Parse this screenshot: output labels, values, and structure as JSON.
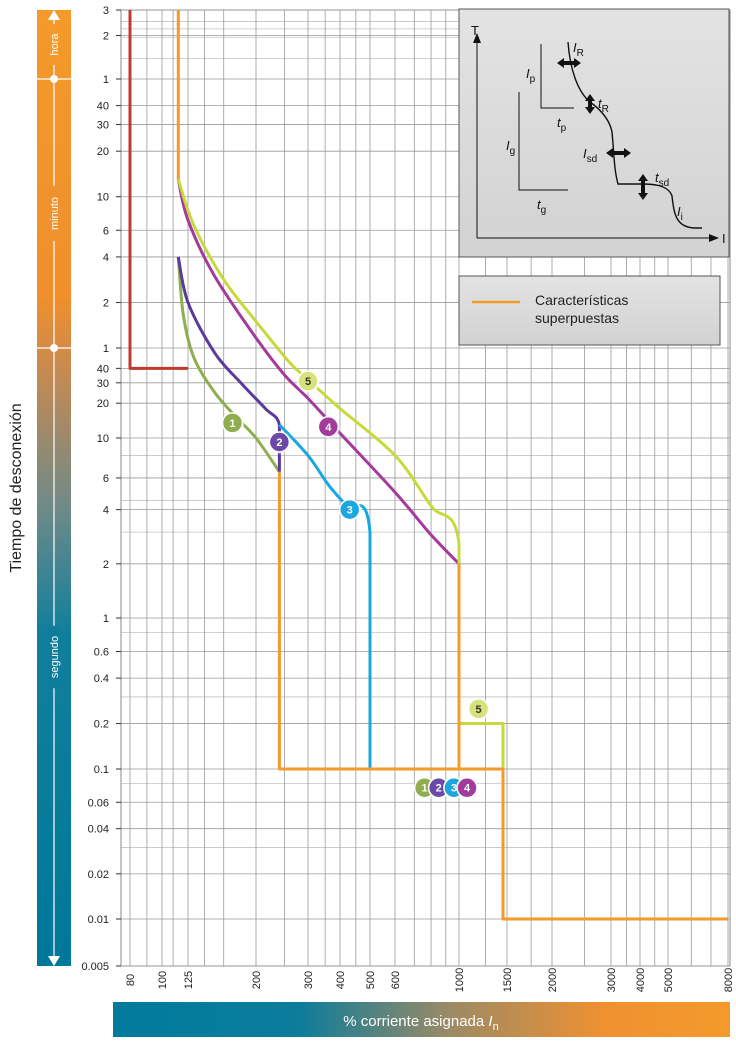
{
  "chart_data": {
    "type": "line",
    "title": "",
    "ylabel": "Tiempo de desconexión",
    "xlabel_prefix": "% corriente asignada ",
    "xlabel_symbol": "I",
    "xlabel_sub": "n",
    "x_scale": "log",
    "y_scale": "log",
    "x_ticks": [
      80,
      100,
      125,
      200,
      300,
      400,
      500,
      600,
      1000,
      1500,
      2000,
      3000,
      4000,
      5000,
      8000
    ],
    "y_ticks": [
      {
        "label": "3",
        "seconds": 10800
      },
      {
        "label": "2",
        "seconds": 7200
      },
      {
        "label": "1",
        "seconds": 3600
      },
      {
        "label": "40",
        "seconds": 2400
      },
      {
        "label": "30",
        "seconds": 1800
      },
      {
        "label": "20",
        "seconds": 1200
      },
      {
        "label": "10",
        "seconds": 600
      },
      {
        "label": "6",
        "seconds": 360
      },
      {
        "label": "4",
        "seconds": 240
      },
      {
        "label": "2",
        "seconds": 120
      },
      {
        "label": "1",
        "seconds": 60
      },
      {
        "label": "40",
        "seconds": 40
      },
      {
        "label": "30",
        "seconds": 30
      },
      {
        "label": "20",
        "seconds": 20
      },
      {
        "label": "10",
        "seconds": 10
      },
      {
        "label": "6",
        "seconds": 6
      },
      {
        "label": "4",
        "seconds": 4
      },
      {
        "label": "2",
        "seconds": 2
      },
      {
        "label": "1",
        "seconds": 1
      },
      {
        "label": "0.6",
        "seconds": 0.6
      },
      {
        "label": "0.4",
        "seconds": 0.4
      },
      {
        "label": "0.2",
        "seconds": 0.2
      },
      {
        "label": "0.1",
        "seconds": 0.1
      },
      {
        "label": "0.06",
        "seconds": 0.06
      },
      {
        "label": "0.04",
        "seconds": 0.04
      },
      {
        "label": "0.02",
        "seconds": 0.02
      },
      {
        "label": "0.01",
        "seconds": 0.01
      },
      {
        "label": "0.005",
        "seconds": 0.005
      }
    ],
    "time_bands": [
      {
        "label": "hora",
        "from_seconds": 3600,
        "to_seconds": 10800
      },
      {
        "label": "minuto",
        "from_seconds": 60,
        "to_seconds": 3600
      },
      {
        "label": "segundo",
        "from_seconds": 0.005,
        "to_seconds": 60
      }
    ],
    "series": [
      {
        "name": "",
        "color": "#c0392b",
        "points": [
          [
            80,
            10800
          ],
          [
            80,
            40
          ],
          [
            125,
            40
          ]
        ]
      },
      {
        "name": "1",
        "color": "#8fae4e",
        "points": [
          [
            115,
            240
          ],
          [
            120,
            100
          ],
          [
            130,
            50
          ],
          [
            150,
            25
          ],
          [
            175,
            15
          ],
          [
            200,
            10
          ],
          [
            240,
            6.5
          ]
        ]
      },
      {
        "name": "2",
        "color": "#5b3a9a",
        "points": [
          [
            115,
            240
          ],
          [
            125,
            120
          ],
          [
            150,
            55
          ],
          [
            180,
            30
          ],
          [
            215,
            18
          ],
          [
            240,
            13
          ],
          [
            240,
            6.5
          ]
        ]
      },
      {
        "name": "3",
        "color": "#1aa7e0",
        "points": [
          [
            240,
            13
          ],
          [
            300,
            8
          ],
          [
            360,
            5.5
          ],
          [
            420,
            4.2
          ],
          [
            500,
            3
          ],
          [
            500,
            0.1
          ]
        ]
      },
      {
        "name": "4",
        "color": "#a33a9c",
        "points": [
          [
            115,
            780
          ],
          [
            125,
            420
          ],
          [
            150,
            180
          ],
          [
            200,
            70
          ],
          [
            250,
            35
          ],
          [
            300,
            22
          ],
          [
            400,
            11
          ],
          [
            600,
            5
          ],
          [
            800,
            2.9
          ],
          [
            1000,
            2
          ]
        ]
      },
      {
        "name": "5",
        "color": "#c8d93c",
        "points": [
          [
            115,
            780
          ],
          [
            130,
            390
          ],
          [
            160,
            170
          ],
          [
            200,
            90
          ],
          [
            260,
            45
          ],
          [
            300,
            32
          ],
          [
            400,
            18
          ],
          [
            600,
            8
          ],
          [
            800,
            4.2
          ],
          [
            1000,
            2.6
          ],
          [
            1000,
            0.2
          ],
          [
            1450,
            0.2
          ],
          [
            1450,
            0.1
          ]
        ]
      },
      {
        "name": "Características superpuestas",
        "color": "#f39a2b",
        "points": [
          [
            115,
            10800
          ],
          [
            115,
            780
          ],
          [
            115,
            780
          ]
        ],
        "extra_paths": [
          [
            [
              240,
              6.5
            ],
            [
              240,
              0.1
            ],
            [
              1000,
              0.1
            ],
            [
              1000,
              2
            ]
          ],
          [
            [
              1000,
              0.1
            ],
            [
              1450,
              0.1
            ],
            [
              1450,
              0.01
            ],
            [
              8000,
              0.01
            ]
          ]
        ]
      }
    ],
    "markers": [
      {
        "label": "1",
        "x": 170,
        "y": 13.5,
        "color": "#8fae4e"
      },
      {
        "label": "2",
        "x": 240,
        "y": 9.5,
        "color": "#6a4aa8"
      },
      {
        "label": "3",
        "x": 430,
        "y": 4.0,
        "color": "#1aa7e0"
      },
      {
        "label": "4",
        "x": 360,
        "y": 12.5,
        "color": "#a33a9c"
      },
      {
        "label": "5",
        "x": 300,
        "y": 31,
        "color": "#d8e27a"
      },
      {
        "label": "5",
        "x": 1180,
        "y": 0.25,
        "color": "#d8e27a"
      },
      {
        "label": "1",
        "x": 760,
        "y": 0.075,
        "color": "#8fae4e"
      },
      {
        "label": "2",
        "x": 850,
        "y": 0.075,
        "color": "#6a4aa8"
      },
      {
        "label": "3",
        "x": 960,
        "y": 0.075,
        "color": "#1aa7e0"
      },
      {
        "label": "4",
        "x": 1070,
        "y": 0.075,
        "color": "#a33a9c"
      }
    ],
    "legend": {
      "position": "top-right",
      "line1": "Características",
      "line2": "superpuestas",
      "color": "#f39a2b"
    },
    "inset": {
      "position": "top-right",
      "axis_y": "T",
      "axis_x": "I",
      "labels": [
        {
          "main": "I",
          "sub": "R"
        },
        {
          "main": "I",
          "sub": "p"
        },
        {
          "main": "t",
          "sub": "R"
        },
        {
          "main": "t",
          "sub": "p"
        },
        {
          "main": "I",
          "sub": "g"
        },
        {
          "main": "I",
          "sub": "sd"
        },
        {
          "main": "t",
          "sub": "sd"
        },
        {
          "main": "t",
          "sub": "g"
        },
        {
          "main": "I",
          "sub": "i"
        }
      ]
    }
  }
}
